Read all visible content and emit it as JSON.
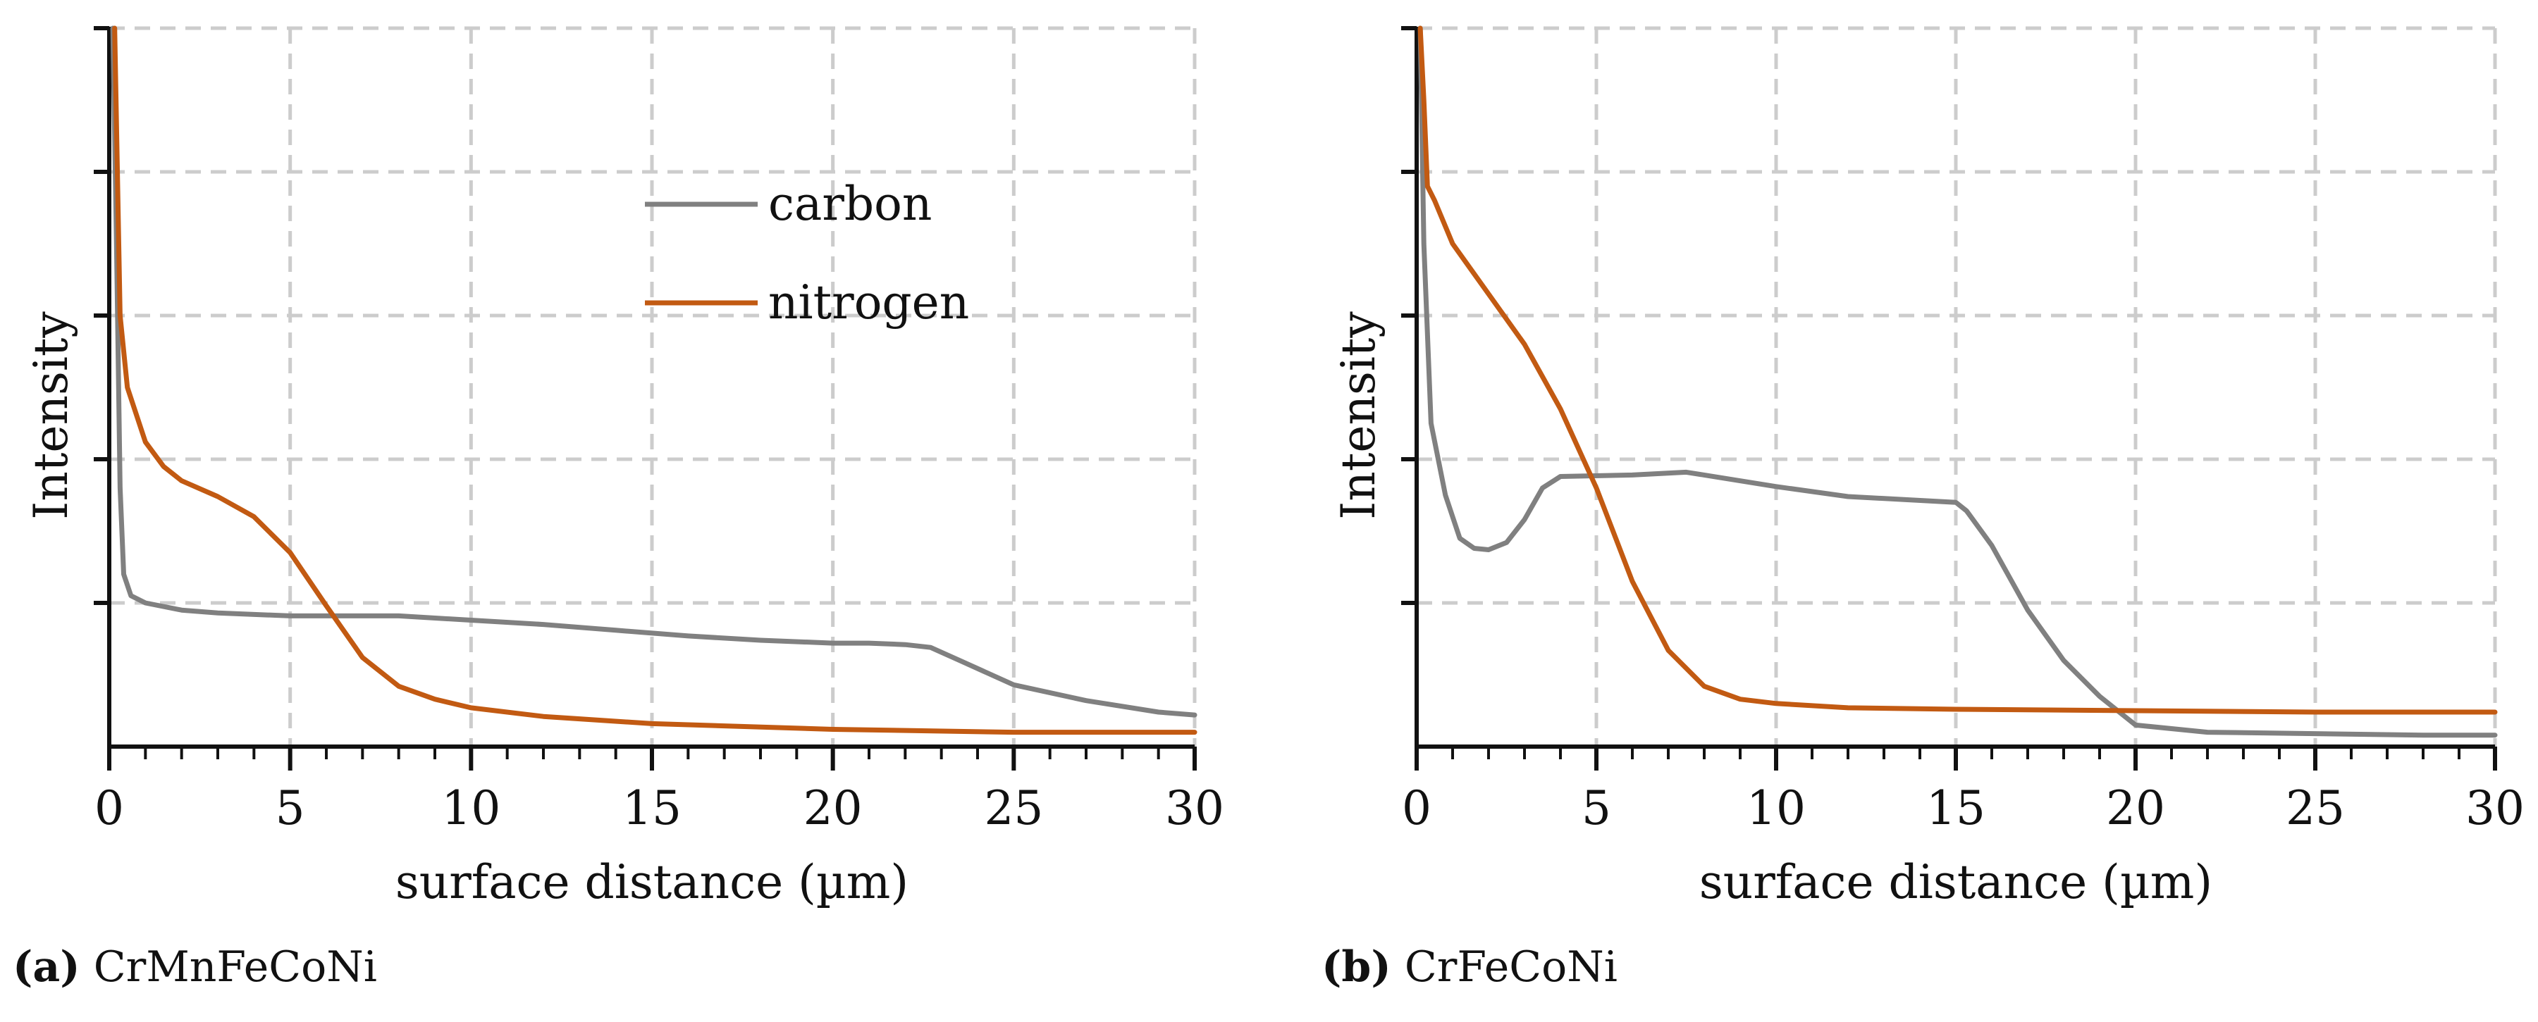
{
  "colors": {
    "carbon": "#808080",
    "nitrogen": "#c25a12",
    "grid": "#cccccc",
    "axis": "#111111"
  },
  "chart_data": [
    {
      "type": "line",
      "caption_tag": "(a)",
      "caption": "CrMnFeCoNi",
      "xlabel": "surface distance (µm)",
      "ylabel": "Intensity",
      "xlim": [
        0,
        30
      ],
      "ylim": [
        0,
        5
      ],
      "xticks": [
        "0",
        "5",
        "10",
        "15",
        "20",
        "25",
        "30"
      ],
      "grid": true,
      "legend_position": "top-center",
      "series": [
        {
          "name": "carbon",
          "x": [
            0.1,
            0.2,
            0.3,
            0.4,
            0.6,
            1,
            2,
            3,
            5,
            7,
            8,
            10,
            12,
            14,
            16,
            18,
            20,
            21,
            22,
            22.7,
            23.5,
            25,
            27,
            29,
            30
          ],
          "y": [
            5.0,
            3.5,
            1.8,
            1.2,
            1.05,
            1.0,
            0.95,
            0.93,
            0.91,
            0.91,
            0.91,
            0.88,
            0.85,
            0.81,
            0.77,
            0.74,
            0.72,
            0.72,
            0.71,
            0.69,
            0.6,
            0.43,
            0.32,
            0.24,
            0.22
          ]
        },
        {
          "name": "nitrogen",
          "x": [
            0.15,
            0.3,
            0.5,
            1,
            1.5,
            2,
            3,
            4,
            5,
            6,
            7,
            8,
            9,
            10,
            12,
            15,
            20,
            25,
            30
          ],
          "y": [
            5.0,
            3.0,
            2.5,
            2.12,
            1.95,
            1.85,
            1.74,
            1.6,
            1.35,
            0.98,
            0.62,
            0.42,
            0.33,
            0.27,
            0.21,
            0.16,
            0.12,
            0.1,
            0.1
          ]
        }
      ]
    },
    {
      "type": "line",
      "caption_tag": "(b)",
      "caption": "CrFeCoNi",
      "xlabel": "surface distance (µm)",
      "ylabel": "Intensity",
      "xlim": [
        0,
        30
      ],
      "ylim": [
        0,
        5
      ],
      "xticks": [
        "0",
        "5",
        "10",
        "15",
        "20",
        "25",
        "30"
      ],
      "grid": true,
      "legend_position": "none",
      "series": [
        {
          "name": "carbon",
          "x": [
            0.1,
            0.2,
            0.4,
            0.8,
            1.2,
            1.6,
            2,
            2.5,
            3,
            3.5,
            4,
            6,
            7.5,
            8,
            10,
            12,
            15,
            15.3,
            16,
            17,
            18,
            19,
            20,
            22,
            25,
            28,
            30
          ],
          "y": [
            5.0,
            3.5,
            2.25,
            1.75,
            1.45,
            1.38,
            1.37,
            1.42,
            1.58,
            1.8,
            1.88,
            1.89,
            1.91,
            1.89,
            1.81,
            1.74,
            1.7,
            1.64,
            1.4,
            0.95,
            0.6,
            0.35,
            0.15,
            0.1,
            0.09,
            0.08,
            0.08
          ]
        },
        {
          "name": "nitrogen",
          "x": [
            0.1,
            0.2,
            0.3,
            0.5,
            1,
            2,
            3,
            4,
            5,
            6,
            7,
            8,
            9,
            10,
            12,
            15,
            20,
            25,
            30
          ],
          "y": [
            5.0,
            4.5,
            3.9,
            3.8,
            3.5,
            3.15,
            2.8,
            2.35,
            1.8,
            1.15,
            0.67,
            0.42,
            0.33,
            0.3,
            0.27,
            0.26,
            0.25,
            0.24,
            0.24
          ]
        }
      ]
    }
  ]
}
